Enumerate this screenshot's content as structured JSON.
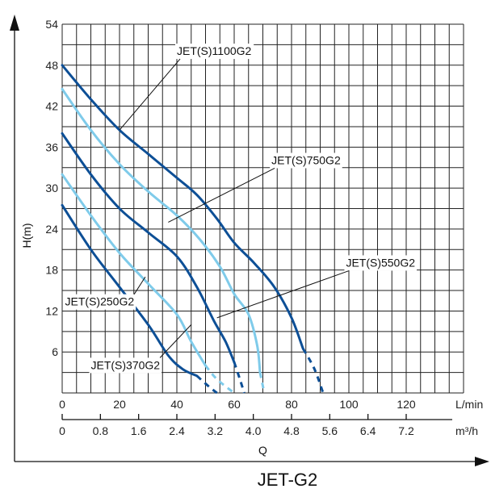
{
  "chart_data": {
    "type": "line",
    "title": "JET-G2",
    "ylabel": "H(m)",
    "xlabel": "Q",
    "x_unit_primary": "L/min",
    "x_unit_secondary": "m³/h",
    "xlim": [
      0,
      140
    ],
    "ylim": [
      0,
      54
    ],
    "grid": true,
    "y_ticks": [
      "6",
      "12",
      "18",
      "24",
      "30",
      "36",
      "42",
      "48",
      "54"
    ],
    "x_ticks_primary": [
      "0",
      "20",
      "40",
      "60",
      "80",
      "100",
      "120"
    ],
    "x_ticks_secondary": [
      "0",
      "0.8",
      "1.6",
      "2.4",
      "3.2",
      "4.0",
      "4.8",
      "5.6",
      "6.4",
      "7.2"
    ],
    "colors": {
      "dark": "#0d4f96",
      "light": "#7fcbea"
    },
    "series": [
      {
        "name": "JET(S)1100G2",
        "color": "dark",
        "x": [
          0,
          10,
          20,
          30,
          40,
          47,
          54,
          60,
          67,
          74,
          80,
          84
        ],
        "y": [
          48,
          43,
          38.5,
          35,
          31.5,
          29,
          25.5,
          22,
          19,
          15.5,
          11,
          6.5
        ],
        "dashed_x": [
          84,
          88,
          91
        ],
        "dashed_y": [
          6.5,
          3.5,
          0
        ]
      },
      {
        "name": "JET(S)750G2",
        "color": "light",
        "x": [
          0,
          10,
          20,
          30,
          40,
          48,
          55,
          60,
          65,
          68,
          69
        ],
        "y": [
          44.5,
          38.5,
          33.5,
          29.5,
          26,
          22.5,
          18.5,
          14.5,
          11.5,
          7,
          3
        ],
        "dashed_x": [
          69,
          70.5
        ],
        "dashed_y": [
          3,
          0
        ]
      },
      {
        "name": "JET(S)550G2",
        "color": "dark",
        "x": [
          0,
          10,
          20,
          30,
          40,
          47,
          53,
          57,
          60
        ],
        "y": [
          38,
          32,
          27,
          23.5,
          20,
          15.5,
          10.5,
          7.5,
          4.5
        ],
        "dashed_x": [
          60,
          62,
          63.5
        ],
        "dashed_y": [
          4.5,
          2,
          0
        ]
      },
      {
        "name": "JET(S)370G2",
        "color": "light",
        "x": [
          0,
          10,
          20,
          30,
          40,
          45,
          50
        ],
        "y": [
          32,
          26,
          20.5,
          16,
          11.5,
          7.5,
          4
        ],
        "dashed_x": [
          50,
          54,
          60
        ],
        "dashed_y": [
          4,
          2,
          0
        ]
      },
      {
        "name": "JET(S)250G2",
        "color": "dark",
        "x": [
          0,
          10,
          20,
          30,
          37,
          42,
          47
        ],
        "y": [
          27.5,
          21,
          15.5,
          10,
          5.5,
          3.5,
          2.5
        ],
        "dashed_x": [
          47,
          51,
          54
        ],
        "dashed_y": [
          2.5,
          1,
          0
        ]
      }
    ],
    "series_labels": [
      {
        "text": "JET(S)1100G2",
        "lx": 40,
        "ly": 49.5,
        "tx": 20,
        "ty": 38.5
      },
      {
        "text": "JET(S)750G2",
        "lx": 73,
        "ly": 33.5,
        "tx": 37,
        "ty": 25
      },
      {
        "text": "JET(S)550G2",
        "lx": 99,
        "ly": 18.5,
        "tx": 54,
        "ty": 11
      },
      {
        "text": "JET(S)250G2",
        "lx": 1,
        "ly": 12.8,
        "tx": 29,
        "ty": 17
      },
      {
        "text": "JET(S)370G2",
        "lx": 10,
        "ly": 3.5,
        "tx": 45,
        "ty": 10
      }
    ]
  }
}
